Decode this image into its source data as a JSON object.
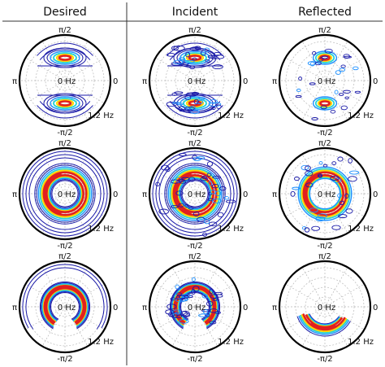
{
  "columns": [
    "Desired",
    "Incident",
    "Reflected"
  ],
  "axis_labels": {
    "top": "π/2",
    "left": "π",
    "right": "0",
    "bottom": "-π/2",
    "center": "0 Hz",
    "radius": "1.2 Hz"
  },
  "colors": {
    "ring": "#000000",
    "grid": "#b8b8b8",
    "divider": "#333333",
    "contour_outer": "#1a1aa8",
    "contour_mid": "#1e90ff",
    "contour_cyan": "#22d3d3",
    "contour_yellow": "#ffd400",
    "contour_peak": "#e02020"
  },
  "panels": [
    {
      "row": 1,
      "column": "Desired",
      "pattern": "two-lobes-vertical"
    },
    {
      "row": 1,
      "column": "Incident",
      "pattern": "two-lobes-vertical-noisy"
    },
    {
      "row": 1,
      "column": "Reflected",
      "pattern": "two-lobes-vertical-sparse"
    },
    {
      "row": 2,
      "column": "Desired",
      "pattern": "full-ring"
    },
    {
      "row": 2,
      "column": "Incident",
      "pattern": "full-ring-noisy"
    },
    {
      "row": 2,
      "column": "Reflected",
      "pattern": "full-ring-sparse"
    },
    {
      "row": 3,
      "column": "Desired",
      "pattern": "upper-arc"
    },
    {
      "row": 3,
      "column": "Incident",
      "pattern": "upper-arc-noisy"
    },
    {
      "row": 3,
      "column": "Reflected",
      "pattern": "lower-arc-sparse"
    }
  ]
}
